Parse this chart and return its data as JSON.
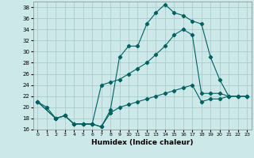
{
  "xlabel": "Humidex (Indice chaleur)",
  "background_color": "#cce8e8",
  "grid_color": "#aacccc",
  "line_color": "#006060",
  "xlim": [
    -0.5,
    23.5
  ],
  "ylim": [
    16,
    39
  ],
  "yticks": [
    16,
    18,
    20,
    22,
    24,
    26,
    28,
    30,
    32,
    34,
    36,
    38
  ],
  "xticks": [
    0,
    1,
    2,
    3,
    4,
    5,
    6,
    7,
    8,
    9,
    10,
    11,
    12,
    13,
    14,
    15,
    16,
    17,
    18,
    19,
    20,
    21,
    22,
    23
  ],
  "series1_x": [
    0,
    1,
    2,
    3,
    4,
    5,
    6,
    7,
    8,
    9,
    10,
    11,
    12,
    13,
    14,
    15,
    16,
    17,
    18,
    19,
    20,
    21,
    22,
    23
  ],
  "series1_y": [
    21,
    20,
    18,
    18.5,
    17,
    17,
    17,
    16.5,
    19.5,
    29,
    31,
    31,
    35,
    37,
    38.5,
    37,
    36.5,
    35.5,
    35,
    29,
    25,
    22,
    22,
    22
  ],
  "series2_x": [
    0,
    2,
    3,
    4,
    5,
    6,
    7,
    8,
    9,
    10,
    11,
    12,
    13,
    14,
    15,
    16,
    17,
    18,
    19,
    20,
    21,
    22,
    23
  ],
  "series2_y": [
    21,
    18,
    18.5,
    17,
    17,
    17,
    24,
    24.5,
    25,
    26,
    27,
    28,
    29.5,
    31,
    33,
    34,
    33,
    22.5,
    22.5,
    22.5,
    22,
    22,
    22
  ],
  "series3_x": [
    0,
    2,
    3,
    4,
    5,
    6,
    7,
    8,
    9,
    10,
    11,
    12,
    13,
    14,
    15,
    16,
    17,
    18,
    19,
    20,
    21,
    22,
    23
  ],
  "series3_y": [
    21,
    18,
    18.5,
    17,
    17,
    17,
    16.5,
    19,
    20,
    20.5,
    21,
    21.5,
    22,
    22.5,
    23,
    23.5,
    24,
    21,
    21.5,
    21.5,
    22,
    22,
    22
  ]
}
